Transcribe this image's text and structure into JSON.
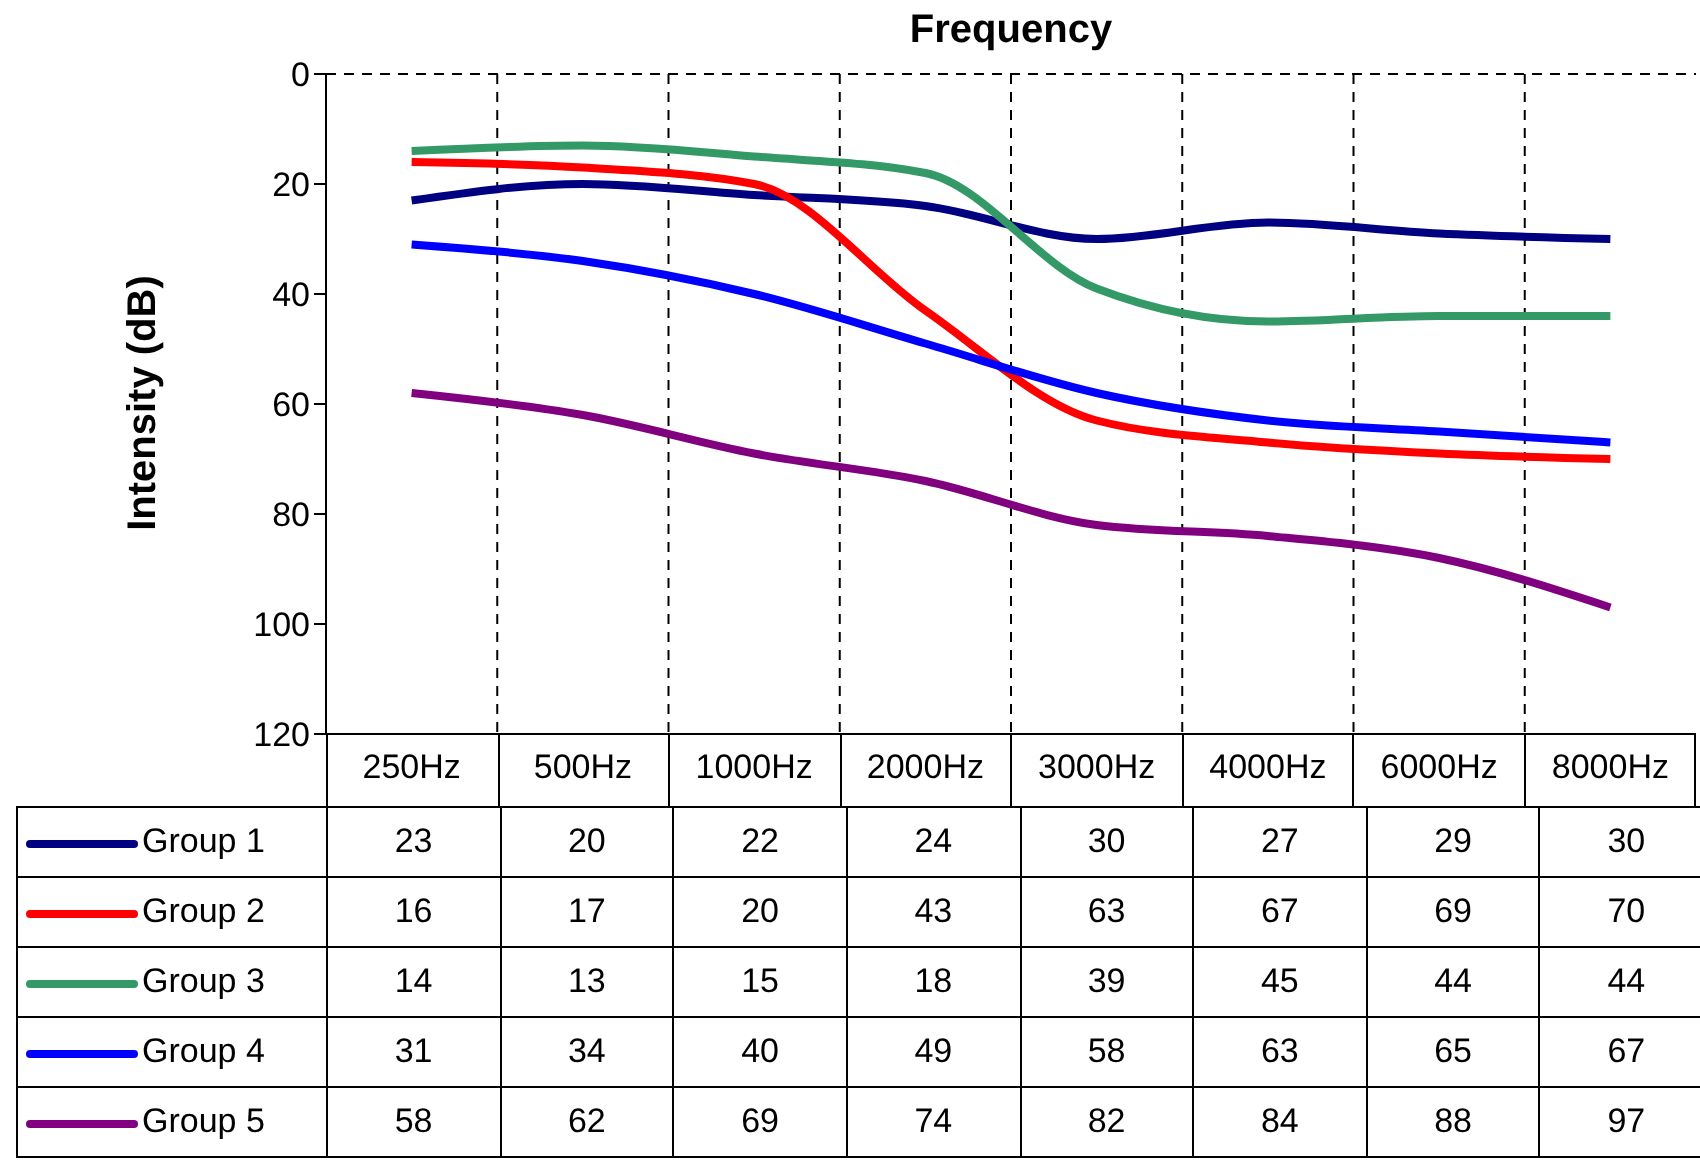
{
  "chart_data": {
    "type": "line",
    "xlabel": "Frequency",
    "ylabel": "Intensity (dB)",
    "categories": [
      "250Hz",
      "500Hz",
      "1000Hz",
      "2000Hz",
      "3000Hz",
      "4000Hz",
      "6000Hz",
      "8000Hz"
    ],
    "series": [
      {
        "name": "Group 1",
        "color": "#000080",
        "values": [
          23,
          20,
          22,
          24,
          30,
          27,
          29,
          30
        ]
      },
      {
        "name": "Group 2",
        "color": "#ff0000",
        "values": [
          16,
          17,
          20,
          43,
          63,
          67,
          69,
          70
        ]
      },
      {
        "name": "Group 3",
        "color": "#339966",
        "values": [
          14,
          13,
          15,
          18,
          39,
          45,
          44,
          44
        ]
      },
      {
        "name": "Group 4",
        "color": "#0000ff",
        "values": [
          31,
          34,
          40,
          49,
          58,
          63,
          65,
          67
        ]
      },
      {
        "name": "Group 5",
        "color": "#800080",
        "values": [
          58,
          62,
          69,
          74,
          82,
          84,
          88,
          97
        ]
      }
    ],
    "ylim": [
      120,
      0
    ],
    "yticks": [
      0,
      20,
      40,
      60,
      80,
      100,
      120
    ],
    "grid": true,
    "legend": "bottom left",
    "data_labels": true,
    "marker": "none",
    "line_style": "solid"
  }
}
